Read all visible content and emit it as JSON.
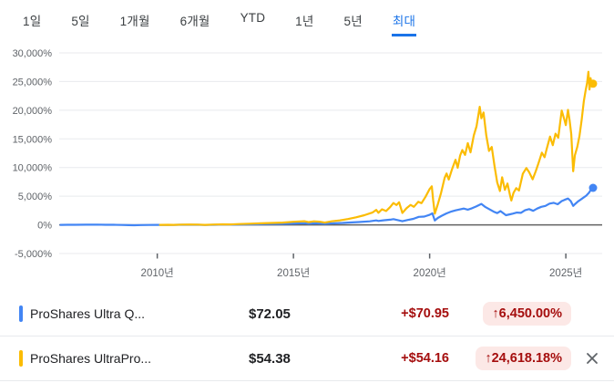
{
  "colors": {
    "accent": "#1a73e8",
    "up_text": "#a50e0e",
    "badge_bg": "#fce8e6",
    "grid": "#e8eaed",
    "zero_line": "#616161",
    "axis_label": "#5f6368",
    "tab_inactive": "#3c4043",
    "series_blue": "#4285f4",
    "series_yellow": "#fbbc04"
  },
  "tabs": [
    {
      "key": "1d",
      "label": "1일",
      "active": false
    },
    {
      "key": "5d",
      "label": "5일",
      "active": false
    },
    {
      "key": "1m",
      "label": "1개월",
      "active": false
    },
    {
      "key": "6m",
      "label": "6개월",
      "active": false
    },
    {
      "key": "ytd",
      "label": "YTD",
      "active": false
    },
    {
      "key": "1y",
      "label": "1년",
      "active": false
    },
    {
      "key": "5y",
      "label": "5년",
      "active": false
    },
    {
      "key": "max",
      "label": "최대",
      "active": true
    }
  ],
  "chart_data": {
    "type": "line",
    "title": "",
    "xlabel": "",
    "ylabel": "",
    "x_domain": [
      2006.4,
      2026.3
    ],
    "y_axis": {
      "unit": "%",
      "min": -5000,
      "max": 30000,
      "step": 5000
    },
    "grid": true,
    "y_ticks": [
      {
        "value": 30000,
        "label": "30,000%"
      },
      {
        "value": 25000,
        "label": "25,000%"
      },
      {
        "value": 20000,
        "label": "20,000%"
      },
      {
        "value": 15000,
        "label": "15,000%"
      },
      {
        "value": 10000,
        "label": "10,000%"
      },
      {
        "value": 5000,
        "label": "5,000%"
      },
      {
        "value": 0,
        "label": "0%"
      },
      {
        "value": -5000,
        "label": "-5,000%"
      }
    ],
    "x_ticks": [
      {
        "year": 2010,
        "label": "2010년"
      },
      {
        "year": 2015,
        "label": "2015년"
      },
      {
        "year": 2020,
        "label": "2020년"
      },
      {
        "year": 2025,
        "label": "2025년"
      }
    ],
    "series": [
      {
        "id": "ultra-qqq",
        "name": "ProShares Ultra QQQ",
        "color": "#4285f4",
        "end_value_pct": 6450.0,
        "points": [
          [
            2006.45,
            0
          ],
          [
            2006.7,
            12
          ],
          [
            2007.0,
            18
          ],
          [
            2007.4,
            30
          ],
          [
            2007.8,
            48
          ],
          [
            2008.1,
            10
          ],
          [
            2008.4,
            20
          ],
          [
            2008.7,
            -25
          ],
          [
            2008.95,
            -52
          ],
          [
            2009.15,
            -60
          ],
          [
            2009.4,
            -40
          ],
          [
            2009.7,
            -25
          ],
          [
            2010.0,
            -10
          ],
          [
            2010.4,
            -18
          ],
          [
            2010.8,
            5
          ],
          [
            2011.2,
            20
          ],
          [
            2011.5,
            10
          ],
          [
            2011.75,
            -12
          ],
          [
            2012.1,
            20
          ],
          [
            2012.4,
            40
          ],
          [
            2012.7,
            28
          ],
          [
            2013.0,
            55
          ],
          [
            2013.5,
            90
          ],
          [
            2014.0,
            135
          ],
          [
            2014.5,
            170
          ],
          [
            2015.0,
            235
          ],
          [
            2015.4,
            280
          ],
          [
            2015.55,
            210
          ],
          [
            2015.8,
            260
          ],
          [
            2016.15,
            180
          ],
          [
            2016.5,
            260
          ],
          [
            2016.8,
            330
          ],
          [
            2017.0,
            390
          ],
          [
            2017.4,
            490
          ],
          [
            2017.8,
            610
          ],
          [
            2018.04,
            780
          ],
          [
            2018.12,
            680
          ],
          [
            2018.3,
            800
          ],
          [
            2018.55,
            900
          ],
          [
            2018.67,
            1000
          ],
          [
            2019.0,
            640
          ],
          [
            2019.2,
            850
          ],
          [
            2019.4,
            1050
          ],
          [
            2019.6,
            1400
          ],
          [
            2019.8,
            1450
          ],
          [
            2020.0,
            1750
          ],
          [
            2020.1,
            2020
          ],
          [
            2020.19,
            760
          ],
          [
            2020.3,
            1200
          ],
          [
            2020.45,
            1600
          ],
          [
            2020.62,
            2000
          ],
          [
            2020.8,
            2340
          ],
          [
            2020.95,
            2520
          ],
          [
            2021.12,
            2700
          ],
          [
            2021.25,
            2850
          ],
          [
            2021.4,
            2650
          ],
          [
            2021.55,
            2900
          ],
          [
            2021.7,
            3200
          ],
          [
            2021.9,
            3650
          ],
          [
            2022.05,
            3100
          ],
          [
            2022.2,
            2700
          ],
          [
            2022.35,
            2300
          ],
          [
            2022.48,
            2050
          ],
          [
            2022.6,
            2400
          ],
          [
            2022.8,
            1680
          ],
          [
            2022.95,
            1850
          ],
          [
            2023.05,
            1950
          ],
          [
            2023.2,
            2150
          ],
          [
            2023.35,
            2100
          ],
          [
            2023.5,
            2550
          ],
          [
            2023.65,
            2750
          ],
          [
            2023.8,
            2450
          ],
          [
            2023.95,
            2850
          ],
          [
            2024.1,
            3150
          ],
          [
            2024.25,
            3300
          ],
          [
            2024.4,
            3700
          ],
          [
            2024.55,
            3850
          ],
          [
            2024.7,
            3600
          ],
          [
            2024.85,
            4150
          ],
          [
            2024.95,
            4350
          ],
          [
            2025.08,
            4600
          ],
          [
            2025.18,
            4150
          ],
          [
            2025.27,
            3300
          ],
          [
            2025.33,
            3600
          ],
          [
            2025.45,
            4100
          ],
          [
            2025.6,
            4600
          ],
          [
            2025.75,
            5100
          ],
          [
            2025.85,
            5600
          ],
          [
            2025.92,
            6100
          ],
          [
            2026.0,
            6450
          ]
        ]
      },
      {
        "id": "ultrapro-qqq",
        "name": "ProShares UltraPro QQQ",
        "color": "#fbbc04",
        "end_value_pct": 24618.18,
        "points": [
          [
            2010.1,
            0
          ],
          [
            2010.4,
            20
          ],
          [
            2010.6,
            -10
          ],
          [
            2010.9,
            40
          ],
          [
            2011.2,
            60
          ],
          [
            2011.5,
            40
          ],
          [
            2011.75,
            -10
          ],
          [
            2012.0,
            50
          ],
          [
            2012.4,
            95
          ],
          [
            2012.7,
            70
          ],
          [
            2013.0,
            140
          ],
          [
            2013.4,
            200
          ],
          [
            2013.8,
            260
          ],
          [
            2014.2,
            330
          ],
          [
            2014.6,
            390
          ],
          [
            2015.0,
            530
          ],
          [
            2015.4,
            640
          ],
          [
            2015.55,
            480
          ],
          [
            2015.75,
            620
          ],
          [
            2015.95,
            560
          ],
          [
            2016.15,
            390
          ],
          [
            2016.4,
            620
          ],
          [
            2016.7,
            780
          ],
          [
            2017.0,
            1020
          ],
          [
            2017.3,
            1320
          ],
          [
            2017.6,
            1680
          ],
          [
            2017.9,
            2150
          ],
          [
            2018.04,
            2620
          ],
          [
            2018.12,
            2120
          ],
          [
            2018.25,
            2720
          ],
          [
            2018.4,
            2420
          ],
          [
            2018.55,
            3100
          ],
          [
            2018.67,
            3820
          ],
          [
            2018.78,
            3450
          ],
          [
            2018.88,
            3950
          ],
          [
            2019.0,
            2080
          ],
          [
            2019.15,
            2900
          ],
          [
            2019.3,
            3480
          ],
          [
            2019.42,
            3150
          ],
          [
            2019.58,
            4020
          ],
          [
            2019.7,
            3780
          ],
          [
            2019.85,
            4900
          ],
          [
            2020.0,
            6250
          ],
          [
            2020.08,
            6720
          ],
          [
            2020.13,
            4300
          ],
          [
            2020.19,
            1950
          ],
          [
            2020.3,
            3600
          ],
          [
            2020.42,
            5600
          ],
          [
            2020.55,
            8200
          ],
          [
            2020.62,
            8950
          ],
          [
            2020.7,
            7900
          ],
          [
            2020.82,
            9700
          ],
          [
            2020.95,
            11350
          ],
          [
            2021.03,
            9950
          ],
          [
            2021.12,
            12100
          ],
          [
            2021.2,
            13050
          ],
          [
            2021.3,
            12200
          ],
          [
            2021.4,
            14250
          ],
          [
            2021.5,
            12650
          ],
          [
            2021.62,
            15600
          ],
          [
            2021.72,
            17200
          ],
          [
            2021.84,
            20600
          ],
          [
            2021.9,
            18600
          ],
          [
            2021.98,
            19600
          ],
          [
            2022.08,
            15600
          ],
          [
            2022.18,
            12900
          ],
          [
            2022.28,
            13600
          ],
          [
            2022.38,
            10300
          ],
          [
            2022.48,
            7400
          ],
          [
            2022.58,
            5900
          ],
          [
            2022.66,
            8300
          ],
          [
            2022.76,
            6100
          ],
          [
            2022.86,
            7200
          ],
          [
            2022.95,
            5200
          ],
          [
            2023.0,
            4250
          ],
          [
            2023.08,
            5600
          ],
          [
            2023.18,
            6400
          ],
          [
            2023.28,
            6000
          ],
          [
            2023.42,
            8900
          ],
          [
            2023.55,
            9900
          ],
          [
            2023.65,
            9200
          ],
          [
            2023.78,
            7950
          ],
          [
            2023.9,
            9400
          ],
          [
            2024.0,
            10800
          ],
          [
            2024.12,
            12600
          ],
          [
            2024.22,
            11800
          ],
          [
            2024.3,
            13300
          ],
          [
            2024.42,
            15400
          ],
          [
            2024.52,
            13900
          ],
          [
            2024.62,
            15900
          ],
          [
            2024.72,
            15200
          ],
          [
            2024.85,
            19950
          ],
          [
            2024.95,
            18300
          ],
          [
            2025.0,
            17400
          ],
          [
            2025.08,
            20050
          ],
          [
            2025.14,
            18200
          ],
          [
            2025.2,
            15800
          ],
          [
            2025.27,
            9350
          ],
          [
            2025.33,
            12100
          ],
          [
            2025.42,
            13600
          ],
          [
            2025.5,
            15500
          ],
          [
            2025.58,
            18300
          ],
          [
            2025.66,
            21600
          ],
          [
            2025.72,
            23300
          ],
          [
            2025.78,
            24800
          ],
          [
            2025.83,
            26700
          ],
          [
            2025.87,
            23600
          ],
          [
            2025.91,
            25600
          ],
          [
            2025.95,
            24300
          ],
          [
            2026.0,
            24618.18
          ]
        ]
      }
    ],
    "legend_position": "bottom"
  },
  "legend": {
    "rows": [
      {
        "id": "ultra-qqq",
        "name": "ProShares Ultra Q...",
        "color": "#4285f4",
        "price": "$72.05",
        "change": "+$70.95",
        "change_pct_badge": "↑6,450.00%",
        "removable": false
      },
      {
        "id": "ultrapro-qqq",
        "name": "ProShares UltraPro...",
        "color": "#fbbc04",
        "price": "$54.38",
        "change": "+$54.16",
        "change_pct_badge": "↑24,618.18%",
        "removable": true
      }
    ]
  }
}
